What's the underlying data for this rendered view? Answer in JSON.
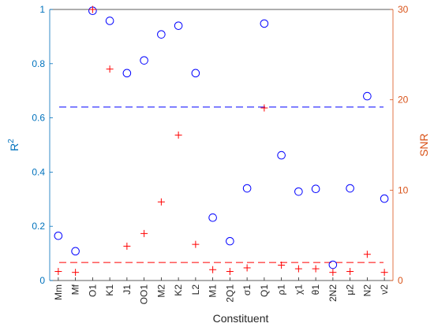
{
  "chart_data": {
    "type": "scatter",
    "xlabel": "Constituent",
    "ylabel_left": "R",
    "ylabel_left_sup": "2",
    "ylabel_right": "SNR",
    "categories": [
      "Mm",
      "Mf",
      "O1",
      "K1",
      "J1",
      "OO1",
      "M2",
      "K2",
      "L2",
      "M1",
      "2Q1",
      "σ1",
      "Q1",
      "ρ1",
      "χ1",
      "θ1",
      "2N2",
      "μ2",
      "N2",
      "ν2"
    ],
    "ylim_left": [
      0,
      1
    ],
    "ylim_right": [
      0,
      30
    ],
    "yticks_left": [
      "0",
      "0.2",
      "0.4",
      "0.6",
      "0.8",
      "1"
    ],
    "yticks_left_values": [
      0,
      0.2,
      0.4,
      0.6,
      0.8,
      1
    ],
    "yticks_right": [
      "0",
      "10",
      "20",
      "30"
    ],
    "yticks_right_values": [
      0,
      10,
      20,
      30
    ],
    "grid": false,
    "colors": {
      "left_axis": "#0072BD",
      "right_axis": "#D95319",
      "r2_marker": "#0000FF",
      "snr_marker": "#FF0000"
    },
    "series": [
      {
        "axis": "left",
        "marker": "circle",
        "values": [
          0.165,
          0.108,
          0.995,
          0.958,
          0.765,
          0.812,
          0.908,
          0.94,
          0.765,
          0.232,
          0.145,
          0.34,
          0.948,
          0.462,
          0.328,
          0.338,
          0.058,
          0.34,
          0.68,
          0.302
        ]
      },
      {
        "axis": "right",
        "marker": "plus",
        "values": [
          1.0,
          0.9,
          30.0,
          23.4,
          3.8,
          5.2,
          8.7,
          16.1,
          4.0,
          1.2,
          1.0,
          1.4,
          19.1,
          1.7,
          1.3,
          1.3,
          0.9,
          1.0,
          2.9,
          0.9
        ]
      }
    ],
    "reference_lines": [
      {
        "axis": "left",
        "value": 0.64,
        "color": "#0000FF",
        "style": "dashed"
      },
      {
        "axis": "right",
        "value": 2.0,
        "color": "#FF0000",
        "style": "dashed"
      }
    ]
  }
}
